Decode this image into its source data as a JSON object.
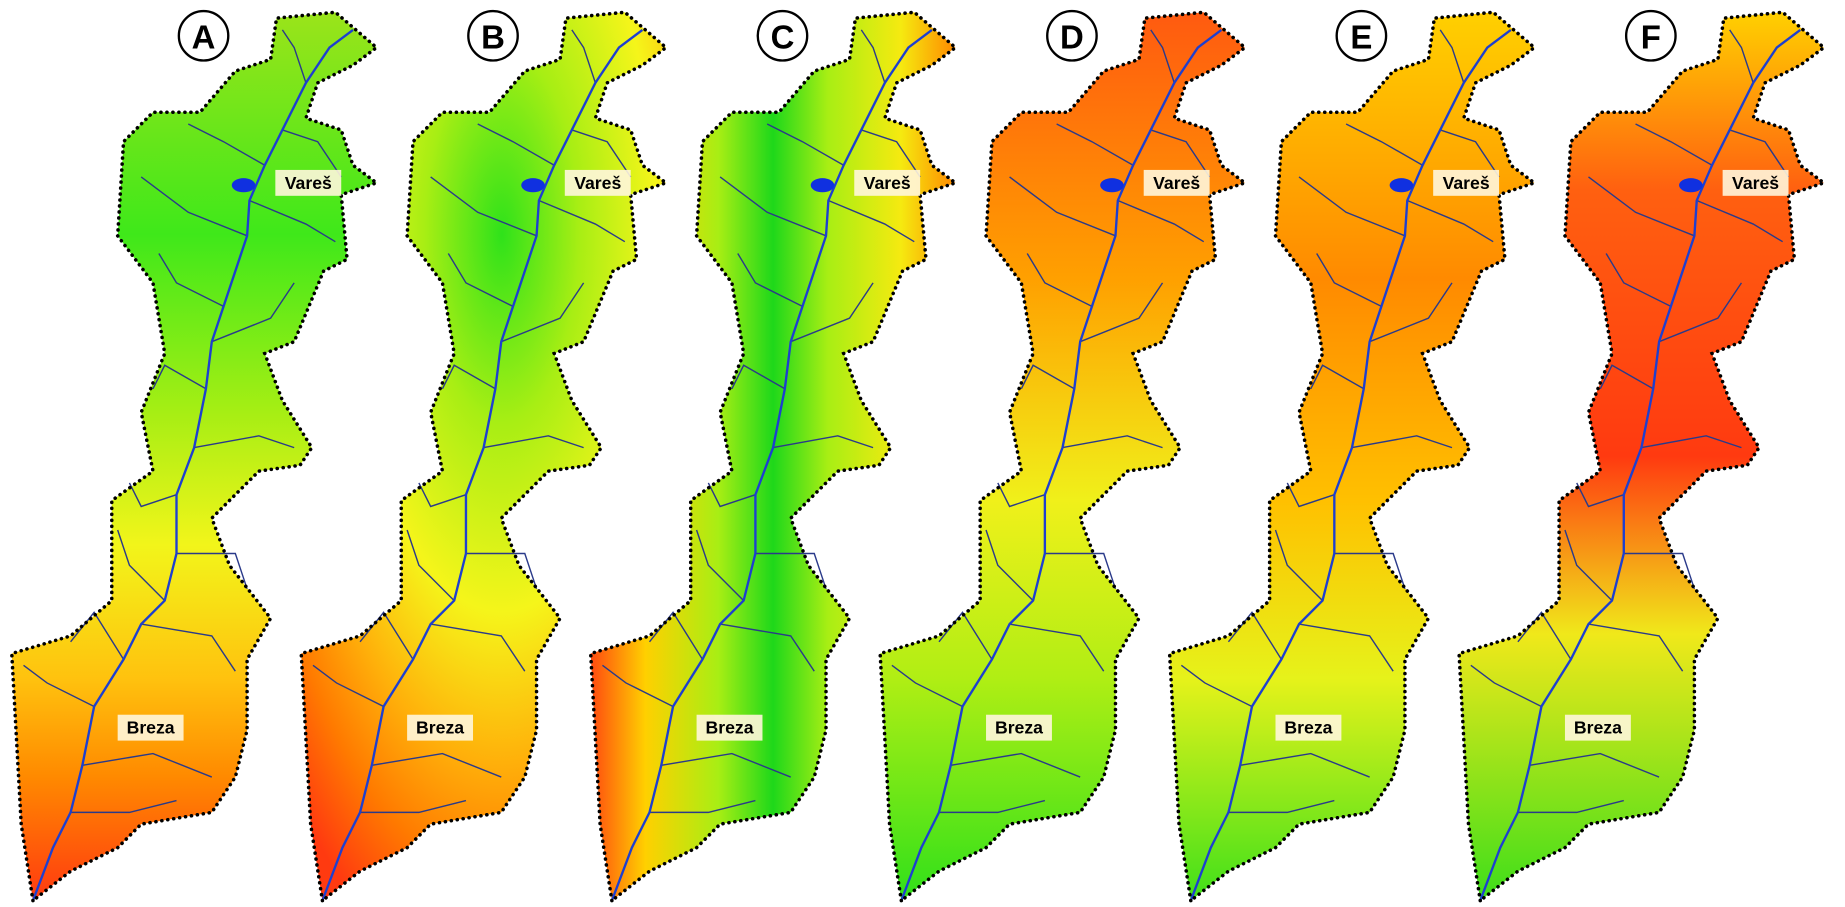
{
  "panels": [
    {
      "label": "A",
      "places": [
        "Vareš",
        "Breza"
      ]
    },
    {
      "label": "B",
      "places": [
        "Vareš",
        "Breza"
      ]
    },
    {
      "label": "C",
      "places": [
        "Vareš",
        "Breza"
      ]
    },
    {
      "label": "D",
      "places": [
        "Vareš",
        "Breza"
      ]
    },
    {
      "label": "E",
      "places": [
        "Vareš",
        "Breza"
      ]
    },
    {
      "label": "F",
      "places": [
        "Vareš",
        "Breza"
      ]
    }
  ]
}
